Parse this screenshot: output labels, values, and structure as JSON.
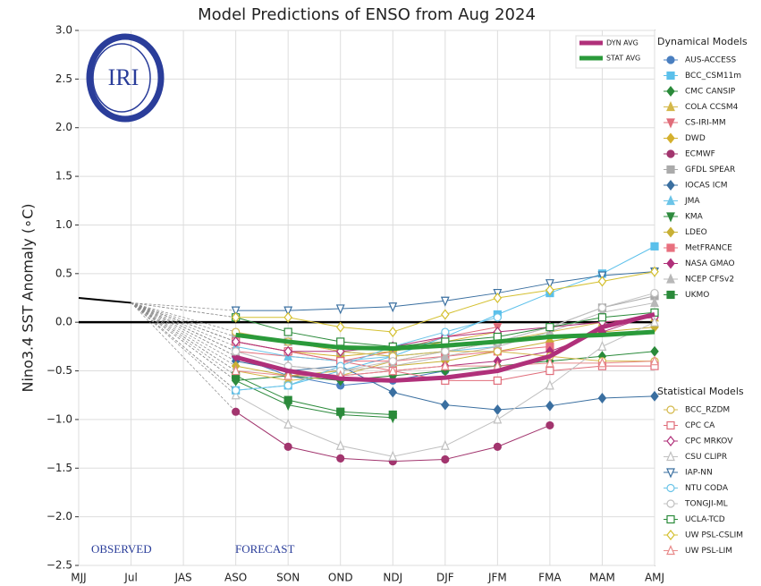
{
  "chart_data": {
    "type": "line",
    "title": "Model Predictions of ENSO from Aug 2024",
    "y_label": "Nino3.4 SST Anomaly (∘C)",
    "logo_text": "IRI",
    "annotations": [
      "OBSERVED",
      "FORECAST"
    ],
    "categories": [
      "MJJ",
      "Jul",
      "JAS",
      "ASO",
      "SON",
      "OND",
      "NDJ",
      "DJF",
      "JFM",
      "FMA",
      "MAM",
      "AMJ"
    ],
    "ylim": [
      -2.5,
      3.0
    ],
    "yticks": [
      {
        "value": -2.5,
        "label": "−2.5"
      },
      {
        "value": -2.0,
        "label": "−2.0"
      },
      {
        "value": -1.5,
        "label": "−1.5"
      },
      {
        "value": -1.0,
        "label": "−1.0"
      },
      {
        "value": -0.5,
        "label": "−0.5"
      },
      {
        "value": 0,
        "label": "0.0"
      },
      {
        "value": 0.5,
        "label": "0.5"
      },
      {
        "value": 1.0,
        "label": "1.0"
      },
      {
        "value": 1.5,
        "label": "1.5"
      },
      {
        "value": 2.0,
        "label": "2.0"
      },
      {
        "value": 2.5,
        "label": "2.5"
      },
      {
        "value": 3.0,
        "label": "3.0"
      }
    ],
    "grid": true,
    "observed": {
      "color": "#000000",
      "values": [
        0.25,
        0.2,
        null,
        null,
        null,
        null,
        null,
        null,
        null,
        null,
        null,
        null
      ]
    },
    "averages": [
      {
        "name": "DYN AVG",
        "color": "#b0307a",
        "values": [
          null,
          null,
          null,
          -0.36,
          -0.5,
          -0.58,
          -0.6,
          -0.57,
          -0.5,
          -0.35,
          -0.05,
          0.08
        ]
      },
      {
        "name": "STAT AVG",
        "color": "#2a9a3a",
        "values": [
          null,
          null,
          null,
          -0.13,
          -0.2,
          -0.26,
          -0.27,
          -0.24,
          -0.2,
          -0.15,
          -0.13,
          -0.1
        ]
      }
    ],
    "series_groups": [
      {
        "name": "Dynamical Models",
        "filled": true,
        "series": [
          {
            "name": "AUS-ACCESS",
            "color": "#4a7fc0",
            "marker": "circle",
            "values": [
              null,
              null,
              null,
              -0.35,
              -0.55,
              -0.65,
              -0.6,
              -0.5,
              null,
              null,
              null,
              null
            ]
          },
          {
            "name": "BCC_CSM11m",
            "color": "#5bc0eb",
            "marker": "square",
            "values": [
              null,
              null,
              null,
              -0.7,
              -0.65,
              -0.5,
              -0.35,
              -0.15,
              0.08,
              0.3,
              0.5,
              0.78
            ]
          },
          {
            "name": "CMC CANSIP",
            "color": "#2a8a3a",
            "marker": "diamond",
            "values": [
              null,
              null,
              null,
              -0.6,
              -0.55,
              -0.6,
              -0.55,
              -0.5,
              -0.45,
              -0.4,
              -0.35,
              -0.3
            ]
          },
          {
            "name": "COLA CCSM4",
            "color": "#d4b84a",
            "marker": "up",
            "values": [
              null,
              null,
              null,
              -0.5,
              -0.6,
              -0.55,
              -0.4,
              -0.3,
              -0.2,
              -0.1,
              0.0,
              0.05
            ]
          },
          {
            "name": "CS-IRI-MM",
            "color": "#e06d7a",
            "marker": "down",
            "values": [
              null,
              null,
              null,
              -0.3,
              -0.35,
              -0.4,
              -0.3,
              -0.15,
              -0.05,
              null,
              null,
              null
            ]
          },
          {
            "name": "DWD",
            "color": "#d4b02e",
            "marker": "diamond",
            "values": [
              null,
              null,
              null,
              -0.2,
              -0.3,
              -0.35,
              -0.3,
              -0.2,
              -0.1,
              null,
              null,
              null
            ]
          },
          {
            "name": "ECMWF",
            "color": "#a2356e",
            "marker": "circle",
            "values": [
              null,
              null,
              null,
              -0.92,
              -1.28,
              -1.4,
              -1.43,
              -1.41,
              -1.28,
              -1.06,
              null,
              null
            ]
          },
          {
            "name": "GFDL SPEAR",
            "color": "#aaaaaa",
            "marker": "square",
            "values": [
              null,
              null,
              null,
              -0.15,
              -0.2,
              -0.3,
              -0.35,
              -0.3,
              -0.2,
              -0.05,
              0.15,
              0.27
            ]
          },
          {
            "name": "IOCAS ICM",
            "color": "#3a6fa0",
            "marker": "diamond",
            "values": [
              null,
              null,
              null,
              -0.4,
              -0.5,
              -0.45,
              -0.72,
              -0.85,
              -0.9,
              -0.86,
              -0.78,
              -0.76
            ]
          },
          {
            "name": "JMA",
            "color": "#6bc4e8",
            "marker": "up",
            "values": [
              null,
              null,
              null,
              -0.25,
              -0.35,
              -0.4,
              -0.35,
              -0.3,
              -0.25,
              null,
              null,
              null
            ]
          },
          {
            "name": "KMA",
            "color": "#2e8b3e",
            "marker": "down",
            "values": [
              null,
              null,
              null,
              -0.6,
              -0.85,
              -0.95,
              -0.98,
              null,
              null,
              null,
              null,
              null
            ]
          },
          {
            "name": "LDEO",
            "color": "#c8b035",
            "marker": "diamond",
            "values": [
              null,
              null,
              null,
              -0.45,
              -0.55,
              -0.5,
              -0.45,
              -0.4,
              -0.3,
              -0.2,
              -0.1,
              -0.05
            ]
          },
          {
            "name": "MetFRANCE",
            "color": "#e8707e",
            "marker": "square",
            "values": [
              null,
              null,
              null,
              -0.2,
              -0.3,
              -0.4,
              -0.4,
              -0.35,
              -0.3,
              -0.25,
              null,
              null
            ]
          },
          {
            "name": "NASA GMAO",
            "color": "#b0307a",
            "marker": "diamond",
            "values": [
              null,
              null,
              null,
              -0.35,
              -0.5,
              -0.55,
              -0.5,
              -0.45,
              -0.4,
              -0.3,
              -0.1,
              0.08
            ]
          },
          {
            "name": "NCEP CFSv2",
            "color": "#b8b8b8",
            "marker": "up",
            "values": [
              null,
              null,
              null,
              -0.3,
              -0.45,
              -0.5,
              -0.45,
              -0.35,
              -0.25,
              -0.1,
              0.1,
              0.2
            ]
          },
          {
            "name": "UKMO",
            "color": "#2a8a3a",
            "marker": "square",
            "values": [
              null,
              null,
              null,
              -0.55,
              -0.8,
              -0.92,
              -0.95,
              null,
              null,
              null,
              null,
              null
            ]
          }
        ]
      },
      {
        "name": "Statistical Models",
        "filled": false,
        "series": [
          {
            "name": "BCC_RZDM",
            "color": "#d4b84a",
            "marker": "circle",
            "values": [
              null,
              null,
              null,
              -0.1,
              -0.2,
              -0.3,
              -0.35,
              -0.3,
              -0.3,
              -0.35,
              -0.4,
              -0.4
            ]
          },
          {
            "name": "CPC CA",
            "color": "#e06d7a",
            "marker": "square",
            "values": [
              null,
              null,
              null,
              -0.2,
              -0.3,
              -0.4,
              -0.5,
              -0.6,
              -0.6,
              -0.5,
              -0.45,
              -0.45
            ]
          },
          {
            "name": "CPC MRKOV",
            "color": "#b0307a",
            "marker": "diamond",
            "values": [
              null,
              null,
              null,
              -0.2,
              -0.3,
              -0.3,
              -0.25,
              -0.15,
              -0.1,
              -0.05,
              0.0,
              0.05
            ]
          },
          {
            "name": "CSU CLIPR",
            "color": "#c0c0c0",
            "marker": "up",
            "values": [
              null,
              null,
              null,
              -0.75,
              -1.05,
              -1.27,
              -1.38,
              -1.27,
              -1.0,
              -0.65,
              -0.25,
              0.0
            ]
          },
          {
            "name": "IAP-NN",
            "color": "#3a6fa0",
            "marker": "down",
            "values": [
              null,
              null,
              null,
              0.12,
              0.12,
              0.14,
              0.16,
              0.22,
              0.3,
              0.4,
              0.48,
              0.52
            ]
          },
          {
            "name": "NTU CODA",
            "color": "#6bc4e8",
            "marker": "circle",
            "values": [
              null,
              null,
              null,
              -0.7,
              -0.65,
              -0.45,
              -0.25,
              -0.1,
              0.05,
              null,
              null,
              null
            ]
          },
          {
            "name": "TONGJI-ML",
            "color": "#c0c0c0",
            "marker": "circle",
            "values": [
              null,
              null,
              null,
              -0.3,
              -0.45,
              -0.5,
              -0.4,
              -0.3,
              -0.2,
              -0.05,
              0.15,
              0.3
            ]
          },
          {
            "name": "UCLA-TCD",
            "color": "#2a8a3a",
            "marker": "square",
            "values": [
              null,
              null,
              null,
              0.05,
              -0.1,
              -0.2,
              -0.25,
              -0.2,
              -0.15,
              -0.05,
              0.05,
              0.1
            ]
          },
          {
            "name": "UW PSL-CSLIM",
            "color": "#d4c030",
            "marker": "diamond",
            "values": [
              null,
              null,
              null,
              0.05,
              0.05,
              -0.05,
              -0.1,
              0.08,
              0.25,
              0.33,
              0.42,
              0.52
            ]
          },
          {
            "name": "UW PSL-LIM",
            "color": "#e88a8a",
            "marker": "up",
            "values": [
              null,
              null,
              null,
              -0.5,
              -0.55,
              -0.55,
              -0.5,
              -0.45,
              -0.45,
              -0.42,
              -0.42,
              -0.4
            ]
          }
        ]
      }
    ]
  }
}
